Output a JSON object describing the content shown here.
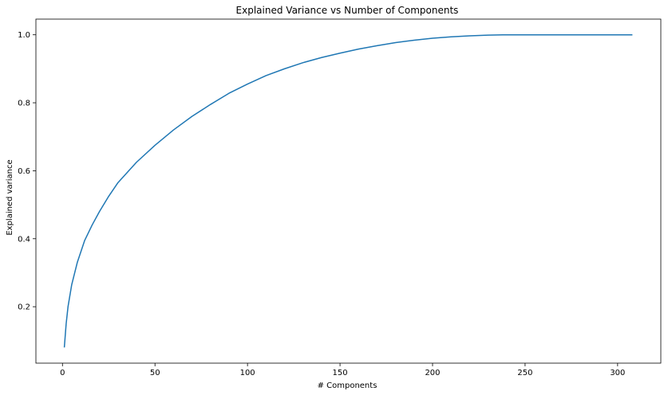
{
  "chart_data": {
    "type": "line",
    "title": "Explained Variance vs Number of Components",
    "xlabel": "# Components",
    "ylabel": "Explained variance",
    "xlim": [
      -14.35,
      323.35
    ],
    "ylim": [
      0.03396,
      1.04613
    ],
    "xticks": [
      0,
      50,
      100,
      150,
      200,
      250,
      300
    ],
    "yticks": [
      0.2,
      0.4,
      0.6,
      0.8,
      1.0
    ],
    "ytick_labels": [
      "0.2",
      "0.4",
      "0.6",
      "0.8",
      "1.0"
    ],
    "grid": false,
    "line_color": "#1f77b4",
    "series": [
      {
        "x": [
          1,
          2,
          3,
          5,
          8,
          12,
          16,
          20,
          25,
          30,
          40,
          50,
          60,
          70,
          80,
          90,
          100,
          110,
          120,
          130,
          140,
          150,
          160,
          170,
          180,
          190,
          200,
          210,
          220,
          230,
          238,
          250,
          260,
          280,
          300,
          308
        ],
        "values": [
          0.08,
          0.15,
          0.2,
          0.265,
          0.33,
          0.395,
          0.44,
          0.48,
          0.525,
          0.565,
          0.625,
          0.675,
          0.72,
          0.76,
          0.795,
          0.828,
          0.855,
          0.88,
          0.9,
          0.918,
          0.933,
          0.946,
          0.958,
          0.968,
          0.977,
          0.984,
          0.99,
          0.994,
          0.997,
          0.999,
          1.0,
          1.0,
          1.0,
          1.0,
          1.0,
          1.0
        ]
      }
    ]
  }
}
